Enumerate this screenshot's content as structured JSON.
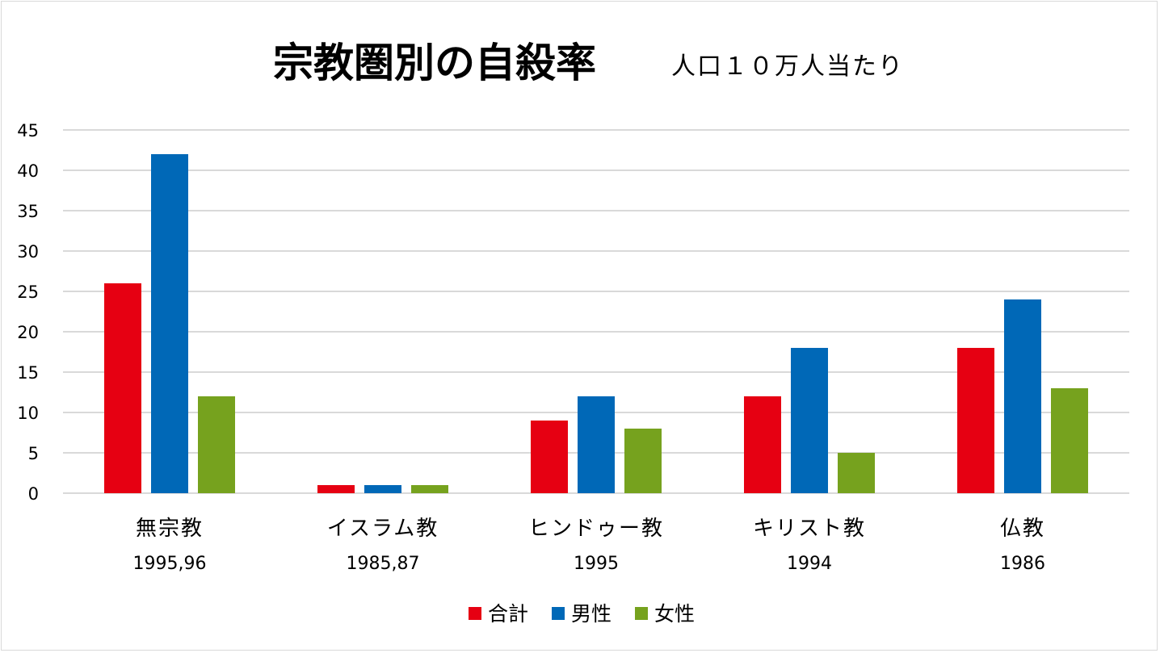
{
  "chart_data": {
    "type": "bar",
    "title": "宗教圏別の自殺率",
    "subtitle": "人口１０万人当たり",
    "categories": [
      "無宗教",
      "イスラム教",
      "ヒンドゥー教",
      "キリスト教",
      "仏教"
    ],
    "category_years": [
      "1995,96",
      "1985,87",
      "1995",
      "1994",
      "1986"
    ],
    "series": [
      {
        "name": "合計",
        "color": "#E60012",
        "values": [
          26,
          1,
          9,
          12,
          18
        ]
      },
      {
        "name": "男性",
        "color": "#0068B7",
        "values": [
          42,
          1,
          12,
          18,
          24
        ]
      },
      {
        "name": "女性",
        "color": "#76A21E",
        "values": [
          12,
          1,
          8,
          5,
          13
        ]
      }
    ],
    "ylim": [
      0,
      45
    ],
    "yticks": [
      0,
      5,
      10,
      15,
      20,
      25,
      30,
      35,
      40,
      45
    ],
    "xlabel": "",
    "ylabel": "",
    "grid": true,
    "legend_position": "bottom"
  }
}
